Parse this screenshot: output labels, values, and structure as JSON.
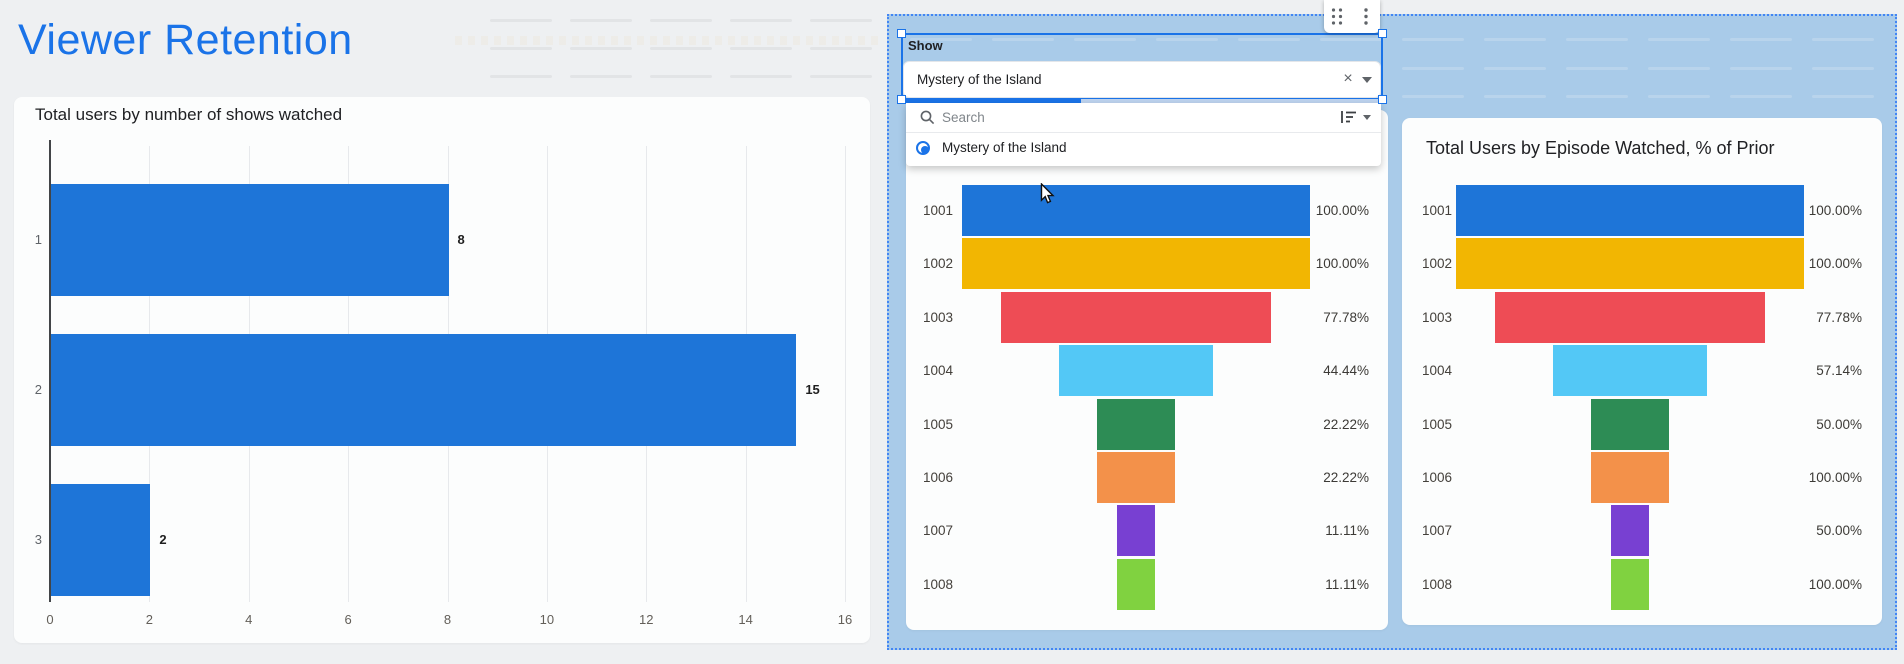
{
  "page": {
    "title": "Viewer Retention"
  },
  "colors": {
    "accent": "#1a73e8",
    "bar": "#1e75d8",
    "funnel_palette": [
      "#1e75d8",
      "#f2b602",
      "#ee4c55",
      "#53c8f6",
      "#2d8c55",
      "#f3914a",
      "#7840d2",
      "#80d240"
    ],
    "overlay": "#a9cbe9",
    "selection_border": "#4285f4"
  },
  "bar_chart": {
    "title": "Total users by number of shows watched",
    "categories": [
      "1",
      "2",
      "3"
    ],
    "values": [
      8,
      15,
      2
    ],
    "value_labels": [
      "8",
      "15",
      "2"
    ],
    "x_ticks": [
      "0",
      "2",
      "4",
      "6",
      "8",
      "10",
      "12",
      "14",
      "16"
    ],
    "x_max": 16
  },
  "filter": {
    "label": "Show",
    "value": "Mystery of the Island",
    "clear_icon": "×",
    "search_placeholder": "Search",
    "options": [
      {
        "label": "Mystery of the Island",
        "selected": true
      }
    ]
  },
  "funnels": {
    "middle": {
      "rows": [
        {
          "id": "1001",
          "users": 9,
          "pct": "100.00%"
        },
        {
          "id": "1002",
          "users": 9,
          "pct": "100.00%"
        },
        {
          "id": "1003",
          "users": 7,
          "pct": "77.78%"
        },
        {
          "id": "1004",
          "users": 4,
          "pct": "44.44%"
        },
        {
          "id": "1005",
          "users": 2,
          "pct": "22.22%"
        },
        {
          "id": "1006",
          "users": 2,
          "pct": "22.22%"
        },
        {
          "id": "1007",
          "users": 1,
          "pct": "11.11%"
        },
        {
          "id": "1008",
          "users": 1,
          "pct": "11.11%"
        }
      ]
    },
    "right": {
      "title": "Total Users by Episode Watched, % of Prior",
      "rows": [
        {
          "id": "1001",
          "users": 9,
          "pct": "100.00%"
        },
        {
          "id": "1002",
          "users": 9,
          "pct": "100.00%"
        },
        {
          "id": "1003",
          "users": 7,
          "pct": "77.78%"
        },
        {
          "id": "1004",
          "users": 4,
          "pct": "57.14%"
        },
        {
          "id": "1005",
          "users": 2,
          "pct": "50.00%"
        },
        {
          "id": "1006",
          "users": 2,
          "pct": "100.00%"
        },
        {
          "id": "1007",
          "users": 1,
          "pct": "50.00%"
        },
        {
          "id": "1008",
          "users": 1,
          "pct": "100.00%"
        }
      ]
    }
  },
  "chart_data": [
    {
      "type": "bar",
      "orientation": "horizontal",
      "title": "Total users by number of shows watched",
      "categories": [
        "1",
        "2",
        "3"
      ],
      "values": [
        8,
        15,
        2
      ],
      "xlabel": "",
      "ylabel": "",
      "xlim": [
        0,
        16
      ],
      "grid": true
    },
    {
      "type": "funnel",
      "title": "",
      "categories": [
        "1001",
        "1002",
        "1003",
        "1004",
        "1005",
        "1006",
        "1007",
        "1008"
      ],
      "values": [
        9,
        9,
        7,
        4,
        2,
        2,
        1,
        1
      ],
      "labels": [
        "100.00%",
        "100.00%",
        "77.78%",
        "44.44%",
        "22.22%",
        "22.22%",
        "11.11%",
        "11.11%"
      ]
    },
    {
      "type": "funnel",
      "title": "Total Users by Episode Watched, % of Prior",
      "categories": [
        "1001",
        "1002",
        "1003",
        "1004",
        "1005",
        "1006",
        "1007",
        "1008"
      ],
      "values": [
        9,
        9,
        7,
        4,
        2,
        2,
        1,
        1
      ],
      "labels": [
        "100.00%",
        "100.00%",
        "77.78%",
        "57.14%",
        "50.00%",
        "100.00%",
        "50.00%",
        "100.00%"
      ]
    }
  ]
}
